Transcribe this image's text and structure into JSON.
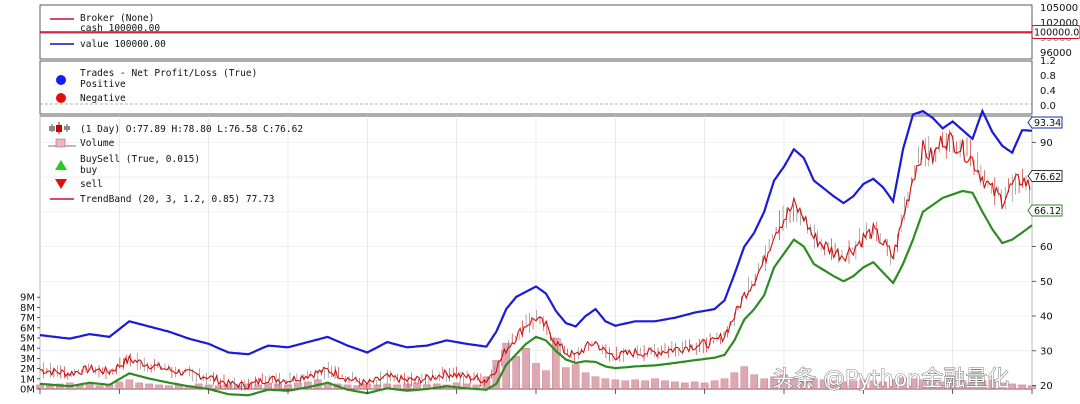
{
  "watermark": "头条 @Python金融量化",
  "colors": {
    "broker_line": "#c8102e",
    "value_line": "#1010d0",
    "positive": "#1a1aff",
    "negative": "#e01010",
    "buy": "#22cc22",
    "sell": "#e01010",
    "band_upper": "#1a1ad8",
    "band_lower": "#2e8b22",
    "price": "#cc1111",
    "volume": "#c46a78",
    "tag_border": "#1030a0"
  },
  "broker_panel": {
    "legend": [
      "Broker (None)",
      "cash 100000.00",
      "value 100000.00"
    ],
    "tag_value": "100000.00",
    "yticks": [
      "105000",
      "102000",
      "99000",
      "96000"
    ]
  },
  "trades_panel": {
    "legend": [
      "Trades - Net Profit/Loss (True)",
      "Positive",
      "Negative"
    ],
    "yticks": [
      "1.2",
      "0.8",
      "0.4",
      "0.0"
    ]
  },
  "price_panel": {
    "legend": [
      "(1 Day) O:77.89 H:78.80 L:76.58 C:76.62",
      "Volume",
      "BuySell (True, 0.015)",
      "buy",
      "sell",
      "TrendBand (20, 3, 1.2, 0.85) 77.73"
    ],
    "tag_upper": "93.34",
    "tag_close": "76.62",
    "tag_lower": "66.12"
  },
  "chart_data": [
    {
      "type": "line",
      "panel": "broker",
      "series": [
        {
          "name": "cash",
          "values": [
            100000,
            100000
          ]
        },
        {
          "name": "value",
          "values": [
            100000,
            100000
          ]
        }
      ],
      "ylim": [
        95500,
        105000
      ]
    },
    {
      "type": "scatter",
      "panel": "trades",
      "series": [
        {
          "name": "Positive",
          "values": []
        },
        {
          "name": "Negative",
          "values": []
        }
      ],
      "ylim": [
        -0.1,
        1.25
      ]
    },
    {
      "type": "line",
      "panel": "price",
      "yticks": [
        20,
        30,
        40,
        50,
        60,
        70,
        80,
        90
      ],
      "ylim": [
        19,
        97
      ],
      "x_index_range": [
        0,
        100
      ],
      "series": [
        {
          "name": "TrendBand upper",
          "points": [
            [
              0,
              34.5
            ],
            [
              3,
              33.5
            ],
            [
              5,
              34.8
            ],
            [
              7,
              34.0
            ],
            [
              9,
              38.5
            ],
            [
              11,
              37.0
            ],
            [
              13,
              35.5
            ],
            [
              15,
              33.5
            ],
            [
              17,
              32.0
            ],
            [
              19,
              29.5
            ],
            [
              21,
              29.0
            ],
            [
              23,
              31.5
            ],
            [
              25,
              31.0
            ],
            [
              27,
              32.5
            ],
            [
              29,
              34.0
            ],
            [
              31,
              31.5
            ],
            [
              33,
              29.5
            ],
            [
              35,
              32.5
            ],
            [
              37,
              31.0
            ],
            [
              39,
              31.5
            ],
            [
              41,
              33.0
            ],
            [
              43,
              32.0
            ],
            [
              45,
              31.2
            ],
            [
              46,
              35.5
            ],
            [
              47,
              42.0
            ],
            [
              48,
              45.5
            ],
            [
              49,
              47.0
            ],
            [
              50,
              48.5
            ],
            [
              51,
              46.5
            ],
            [
              52,
              41.5
            ],
            [
              53,
              38.0
            ],
            [
              54,
              37.0
            ],
            [
              55,
              40.0
            ],
            [
              56,
              42.0
            ],
            [
              57,
              38.5
            ],
            [
              58,
              37.2
            ],
            [
              60,
              38.5
            ],
            [
              62,
              38.5
            ],
            [
              64,
              39.5
            ],
            [
              66,
              41.0
            ],
            [
              68,
              42.0
            ],
            [
              69,
              44.5
            ],
            [
              70,
              52.0
            ],
            [
              71,
              60.0
            ],
            [
              72,
              64.0
            ],
            [
              73,
              70.0
            ],
            [
              74,
              79.0
            ],
            [
              75,
              83.0
            ],
            [
              76,
              88.0
            ],
            [
              77,
              85.5
            ],
            [
              78,
              79.0
            ],
            [
              80,
              74.5
            ],
            [
              81,
              72.5
            ],
            [
              82,
              74.5
            ],
            [
              83,
              78.0
            ],
            [
              84,
              79.5
            ],
            [
              85,
              77.0
            ],
            [
              86,
              73.0
            ],
            [
              87,
              88.0
            ],
            [
              88,
              98.0
            ],
            [
              89,
              99.0
            ],
            [
              90,
              97.0
            ],
            [
              91,
              94.0
            ],
            [
              92,
              96.0
            ],
            [
              93,
              93.5
            ],
            [
              94,
              91.0
            ],
            [
              95,
              99.0
            ],
            [
              96,
              93.0
            ],
            [
              97,
              89.0
            ],
            [
              98,
              87.0
            ],
            [
              99,
              93.5
            ],
            [
              100,
              93.34
            ]
          ]
        },
        {
          "name": "Price",
          "points": [
            [
              0,
              24.5
            ],
            [
              3,
              23.5
            ],
            [
              5,
              24.8
            ],
            [
              7,
              24.0
            ],
            [
              9,
              27.5
            ],
            [
              11,
              26.0
            ],
            [
              13,
              24.5
            ],
            [
              15,
              23.5
            ],
            [
              17,
              22.5
            ],
            [
              19,
              20.5
            ],
            [
              21,
              20.0
            ],
            [
              23,
              22.0
            ],
            [
              25,
              21.5
            ],
            [
              27,
              23.0
            ],
            [
              29,
              24.5
            ],
            [
              31,
              22.0
            ],
            [
              33,
              20.5
            ],
            [
              35,
              22.5
            ],
            [
              37,
              21.5
            ],
            [
              39,
              22.0
            ],
            [
              41,
              23.5
            ],
            [
              43,
              22.5
            ],
            [
              45,
              21.5
            ],
            [
              46,
              25.0
            ],
            [
              47,
              30.5
            ],
            [
              48,
              34.0
            ],
            [
              49,
              37.5
            ],
            [
              50,
              39.5
            ],
            [
              51,
              37.0
            ],
            [
              52,
              32.5
            ],
            [
              53,
              29.5
            ],
            [
              54,
              28.5
            ],
            [
              55,
              31.0
            ],
            [
              56,
              32.5
            ],
            [
              57,
              29.5
            ],
            [
              58,
              28.5
            ],
            [
              60,
              29.5
            ],
            [
              62,
              29.5
            ],
            [
              64,
              30.5
            ],
            [
              66,
              31.5
            ],
            [
              68,
              32.5
            ],
            [
              69,
              34.5
            ],
            [
              70,
              40.0
            ],
            [
              71,
              46.0
            ],
            [
              72,
              50.5
            ],
            [
              73,
              55.5
            ],
            [
              74,
              64.0
            ],
            [
              75,
              68.0
            ],
            [
              76,
              72.0
            ],
            [
              77,
              68.5
            ],
            [
              78,
              62.5
            ],
            [
              80,
              58.5
            ],
            [
              81,
              57.5
            ],
            [
              82,
              59.5
            ],
            [
              83,
              62.5
            ],
            [
              84,
              64.5
            ],
            [
              85,
              61.0
            ],
            [
              86,
              57.0
            ],
            [
              87,
              68.0
            ],
            [
              88,
              80.0
            ],
            [
              89,
              88.0
            ],
            [
              90,
              85.5
            ],
            [
              91,
              91.0
            ],
            [
              92,
              90.5
            ],
            [
              93,
              88.0
            ],
            [
              94,
              85.0
            ],
            [
              95,
              80.0
            ],
            [
              96,
              76.0
            ],
            [
              97,
              73.5
            ],
            [
              98,
              77.5
            ],
            [
              99,
              79.5
            ],
            [
              100,
              76.62
            ]
          ]
        },
        {
          "name": "TrendBand lower",
          "points": [
            [
              0,
              20.5
            ],
            [
              3,
              19.8
            ],
            [
              5,
              20.8
            ],
            [
              7,
              20.2
            ],
            [
              9,
              23.5
            ],
            [
              11,
              22.0
            ],
            [
              13,
              20.8
            ],
            [
              15,
              19.8
            ],
            [
              17,
              19.0
            ],
            [
              19,
              17.5
            ],
            [
              21,
              17.2
            ],
            [
              23,
              18.8
            ],
            [
              25,
              18.5
            ],
            [
              27,
              19.5
            ],
            [
              29,
              20.8
            ],
            [
              31,
              18.8
            ],
            [
              33,
              17.8
            ],
            [
              35,
              19.2
            ],
            [
              37,
              18.5
            ],
            [
              39,
              19.0
            ],
            [
              41,
              19.8
            ],
            [
              43,
              19.2
            ],
            [
              45,
              18.8
            ],
            [
              46,
              20.5
            ],
            [
              47,
              26.0
            ],
            [
              48,
              29.0
            ],
            [
              49,
              32.0
            ],
            [
              50,
              34.0
            ],
            [
              51,
              33.0
            ],
            [
              52,
              30.0
            ],
            [
              53,
              27.5
            ],
            [
              54,
              26.5
            ],
            [
              55,
              27.0
            ],
            [
              56,
              26.8
            ],
            [
              57,
              25.5
            ],
            [
              58,
              25.0
            ],
            [
              60,
              25.5
            ],
            [
              62,
              25.8
            ],
            [
              64,
              26.5
            ],
            [
              66,
              27.3
            ],
            [
              68,
              28.0
            ],
            [
              69,
              28.8
            ],
            [
              70,
              33.0
            ],
            [
              71,
              39.0
            ],
            [
              72,
              42.0
            ],
            [
              73,
              46.0
            ],
            [
              74,
              54.0
            ],
            [
              75,
              58.0
            ],
            [
              76,
              62.0
            ],
            [
              77,
              60.0
            ],
            [
              78,
              55.0
            ],
            [
              80,
              51.5
            ],
            [
              81,
              50.0
            ],
            [
              82,
              51.5
            ],
            [
              83,
              54.0
            ],
            [
              84,
              55.5
            ],
            [
              85,
              52.5
            ],
            [
              86,
              49.5
            ],
            [
              87,
              55.0
            ],
            [
              88,
              62.0
            ],
            [
              89,
              70.0
            ],
            [
              90,
              72.0
            ],
            [
              91,
              74.0
            ],
            [
              92,
              75.0
            ],
            [
              93,
              76.0
            ],
            [
              94,
              75.5
            ],
            [
              95,
              70.0
            ],
            [
              96,
              65.0
            ],
            [
              97,
              61.0
            ],
            [
              98,
              62.0
            ],
            [
              99,
              64.0
            ],
            [
              100,
              66.12
            ]
          ]
        }
      ]
    },
    {
      "type": "bar",
      "panel": "volume",
      "yticks": [
        "0M",
        "1M",
        "2M",
        "3M",
        "4M",
        "5M",
        "6M",
        "7M",
        "8M",
        "9M"
      ],
      "ylim": [
        0,
        10
      ],
      "x_index_range": [
        0,
        100
      ],
      "values": [
        0.4,
        0.3,
        0.5,
        0.6,
        0.4,
        0.5,
        0.3,
        0.4,
        0.7,
        0.9,
        0.6,
        0.5,
        0.4,
        0.3,
        0.4,
        0.3,
        0.5,
        0.4,
        0.3,
        0.4,
        0.3,
        0.5,
        0.4,
        0.6,
        0.5,
        0.4,
        0.6,
        0.7,
        0.9,
        0.6,
        0.5,
        0.4,
        0.3,
        0.5,
        0.4,
        0.5,
        0.4,
        0.5,
        0.6,
        0.4,
        0.5,
        0.4,
        0.6,
        0.5,
        0.4,
        1.2,
        2.8,
        4.5,
        3.2,
        4.0,
        2.5,
        1.8,
        5.0,
        2.1,
        2.4,
        1.6,
        1.2,
        1.0,
        0.9,
        0.8,
        0.9,
        0.8,
        1.0,
        0.8,
        0.7,
        0.6,
        0.7,
        0.6,
        0.8,
        1.0,
        1.6,
        2.2,
        1.4,
        1.0,
        1.2,
        1.4,
        1.1,
        0.9,
        1.0,
        0.9,
        0.8,
        0.7,
        0.8,
        0.9,
        0.8,
        0.7,
        0.9,
        1.1,
        1.0,
        0.9,
        0.8,
        0.7,
        0.9,
        0.8,
        0.7,
        0.8,
        0.9,
        0.6,
        0.5,
        0.4,
        0.3
      ]
    }
  ]
}
